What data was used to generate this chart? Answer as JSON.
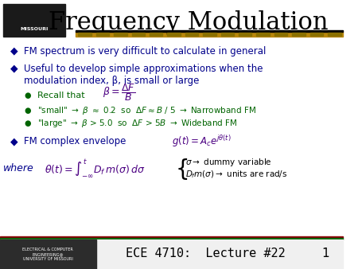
{
  "title": "Frequency Modulation",
  "title_color": "#000000",
  "title_fontsize": 22,
  "bg_color": "#ffffff",
  "bullet_color": "#00008B",
  "green_color": "#006400",
  "gold_color": "#FFD700",
  "dark_gold": "#B8860B",
  "footer_text": "ECE 4710:  Lecture #22",
  "footer_num": "1",
  "bullet1": "FM spectrum is very difficult to calculate in general",
  "bullet2_line1": "Useful to develop simple approximations when the",
  "bullet2_line2": "modulation index, β, is small or large",
  "sub1": "Recall that",
  "sub2": "\"small\" → β ≈ 0.2  so  ΔF ≈ B / 5 → Narrowband FM",
  "sub3": "\"large\" → β > 5.0  so  ΔF > 5B → Wideband FM",
  "bullet3": "FM complex envelope"
}
